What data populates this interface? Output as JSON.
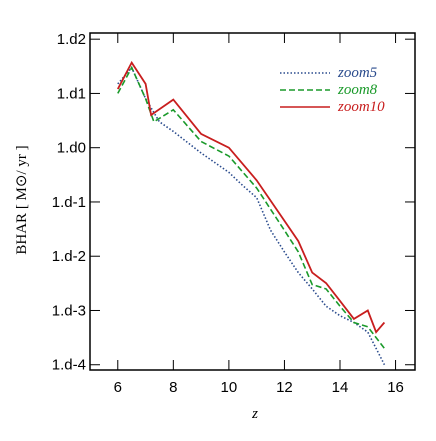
{
  "chart_data": {
    "type": "line",
    "xlabel": "z",
    "ylabel": "BHAR  [ M⊙/ yr ]",
    "yscale": "log",
    "xlim": [
      5.0,
      16.7
    ],
    "ylim": [
      8e-05,
      130
    ],
    "xticks": [
      6,
      8,
      10,
      12,
      14,
      16
    ],
    "yticks": [
      {
        "value": 100,
        "label": "1.d2"
      },
      {
        "value": 10,
        "label": "1.d1"
      },
      {
        "value": 1,
        "label": "1.d0"
      },
      {
        "value": 0.1,
        "label": "1.d-1"
      },
      {
        "value": 0.01,
        "label": "1.d-2"
      },
      {
        "value": 0.001,
        "label": "1.d-3"
      },
      {
        "value": 0.0001,
        "label": "1.d-4"
      }
    ],
    "legend": "upper right",
    "series": [
      {
        "name": "zoom5",
        "color": "#2a4b8d",
        "linestyle": "dotted",
        "x": [
          6.0,
          6.5,
          7.0,
          7.5,
          8.0,
          9.0,
          10.0,
          10.5,
          11.0,
          11.5,
          12.0,
          12.5,
          13.0,
          13.5,
          14.0,
          14.5,
          15.0,
          15.6
        ],
        "values": [
          15,
          30,
          8,
          3,
          2,
          0.8,
          0.35,
          0.2,
          0.12,
          0.03,
          0.012,
          0.005,
          0.0025,
          0.0012,
          0.0008,
          0.0006,
          0.0004,
          0.0001
        ]
      },
      {
        "name": "zoom8",
        "color": "#1a9a2a",
        "linestyle": "dashed",
        "x": [
          6.0,
          6.5,
          7.0,
          7.3,
          8.0,
          9.0,
          10.0,
          11.0,
          12.0,
          12.5,
          13.0,
          13.5,
          14.0,
          14.5,
          15.0,
          15.6
        ],
        "values": [
          10,
          30,
          8,
          3,
          5,
          1.3,
          0.7,
          0.18,
          0.03,
          0.012,
          0.003,
          0.0025,
          0.0012,
          0.0006,
          0.0005,
          0.0002
        ]
      },
      {
        "name": "zoom10",
        "color": "#c81e1e",
        "linestyle": "solid",
        "x": [
          6.0,
          6.5,
          7.0,
          7.2,
          8.0,
          9.0,
          10.0,
          11.0,
          12.0,
          12.5,
          13.0,
          13.5,
          14.0,
          14.5,
          15.0,
          15.3,
          15.6
        ],
        "values": [
          12,
          37,
          15,
          4,
          7.7,
          1.8,
          1.0,
          0.25,
          0.045,
          0.019,
          0.005,
          0.0032,
          0.0015,
          0.0007,
          0.001,
          0.0004,
          0.0006
        ]
      }
    ]
  }
}
